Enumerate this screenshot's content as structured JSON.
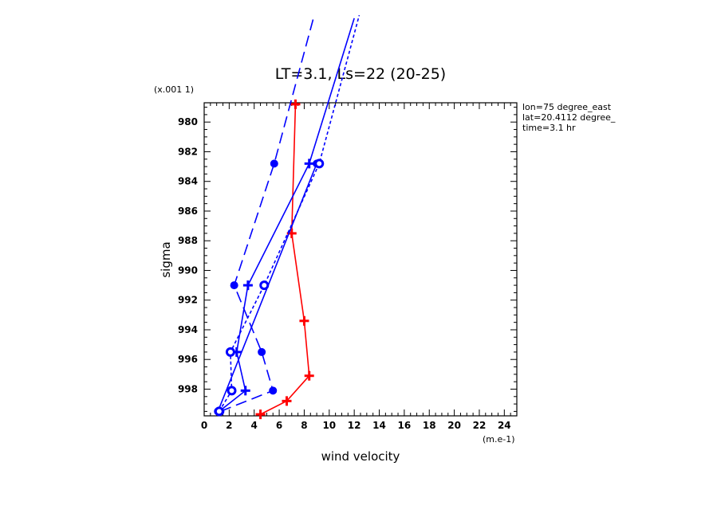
{
  "chart_data": {
    "type": "line",
    "title": "LT=3.1, Ls=22 (20-25)",
    "xlabel": "wind velocity",
    "ylabel": "sigma",
    "x_unit": "(m.e-1)",
    "y_unit": "(x.001 1)",
    "info": [
      "lon=75 degree_east",
      "lat=20.4112 degree_",
      "time=3.1 hr"
    ],
    "xlim": [
      0,
      25
    ],
    "ylim": [
      999.8,
      978.7
    ],
    "x_ticks": [
      0,
      2,
      4,
      6,
      8,
      10,
      12,
      14,
      16,
      18,
      20,
      22,
      24
    ],
    "y_ticks": [
      980,
      982,
      984,
      986,
      988,
      990,
      992,
      994,
      996,
      998
    ],
    "series": [
      {
        "color": "#ff0000",
        "dash": "",
        "marker": "plus",
        "points": [
          [
            4.5,
            999.7
          ],
          [
            6.6,
            998.8
          ],
          [
            8.4,
            997.1
          ],
          [
            8.0,
            993.4
          ],
          [
            7.0,
            987.5
          ],
          [
            7.3,
            978.8
          ]
        ]
      },
      {
        "color": "#0000ff",
        "dash": "",
        "marker": "plus",
        "points": [
          [
            1.2,
            999.5
          ],
          [
            3.3,
            998.1
          ],
          [
            2.6,
            995.5
          ],
          [
            3.5,
            991.0
          ],
          [
            8.4,
            982.8
          ],
          [
            12.0,
            973.0
          ]
        ]
      },
      {
        "color": "#0000ff",
        "dash": "",
        "marker": "dot",
        "points": [
          [
            1.1,
            999.5
          ],
          [
            9.0,
            982.8
          ]
        ]
      },
      {
        "color": "#0000ff",
        "dash": "14,7",
        "marker": "dot",
        "points": [
          [
            1.3,
            999.5
          ],
          [
            5.5,
            998.1
          ],
          [
            4.6,
            995.5
          ],
          [
            2.4,
            991.0
          ],
          [
            5.6,
            982.8
          ],
          [
            8.8,
            972.8
          ]
        ]
      },
      {
        "color": "#0000ff",
        "dash": "4,3",
        "marker": "ring",
        "points": [
          [
            1.2,
            999.5
          ],
          [
            2.2,
            998.1
          ],
          [
            2.1,
            995.5
          ],
          [
            4.8,
            991.0
          ],
          [
            9.2,
            982.8
          ],
          [
            12.4,
            972.8
          ]
        ]
      }
    ]
  }
}
